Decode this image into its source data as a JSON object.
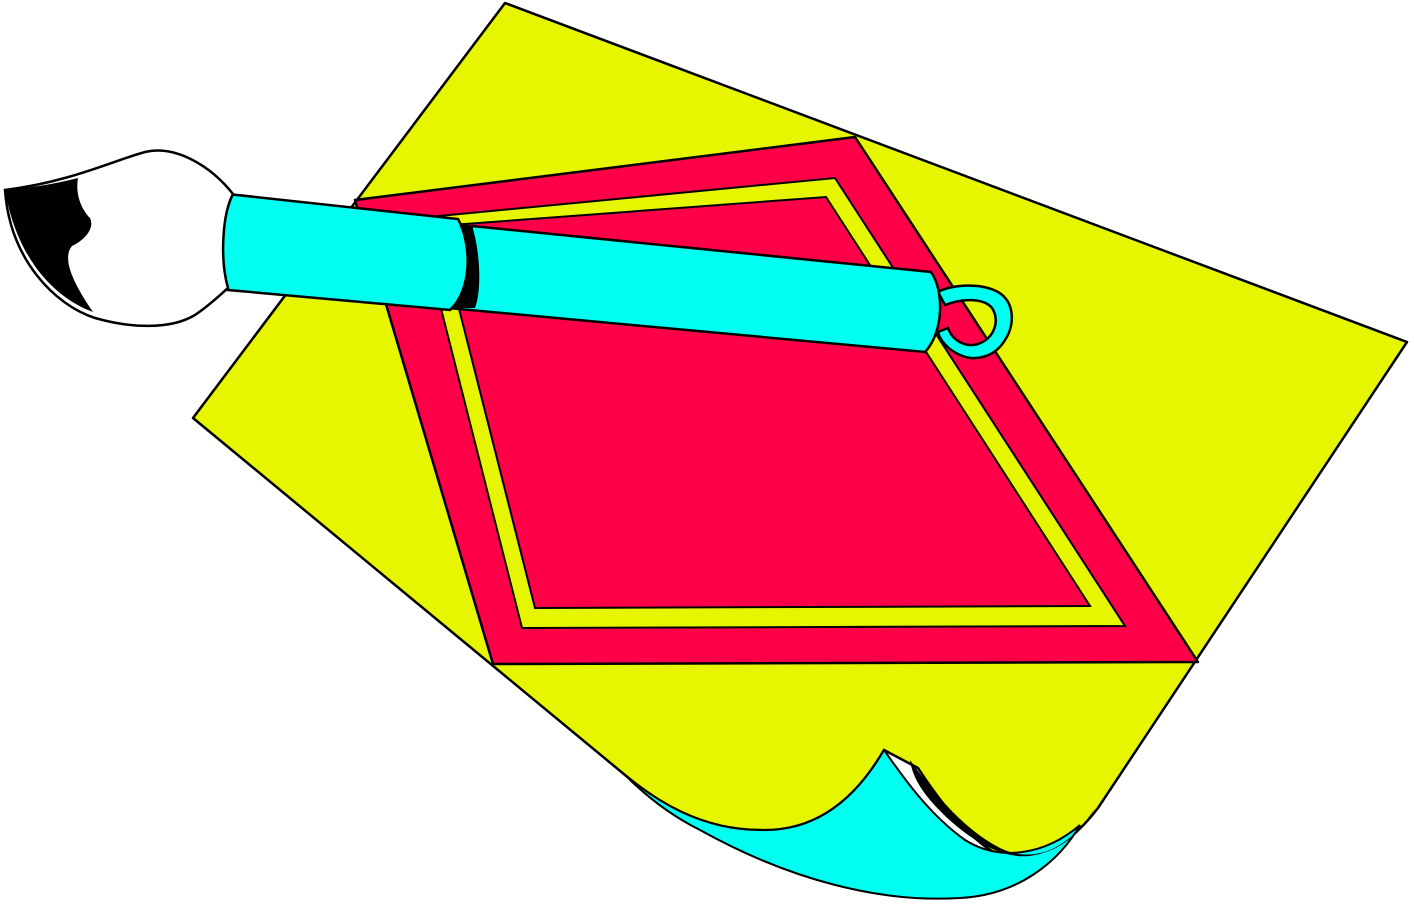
{
  "illustration": {
    "subject": "paintbrush-over-paper",
    "colors": {
      "paper": "#e6f500",
      "paper_curl": "#00fff0",
      "frame": "#ff0048",
      "frame_inner_stripe": "#e6f500",
      "brush_handle": "#00fff0",
      "brush_bristles": "#ffffff",
      "brush_tip": "#000000",
      "outline": "#000000",
      "background": "#ffffff"
    }
  }
}
